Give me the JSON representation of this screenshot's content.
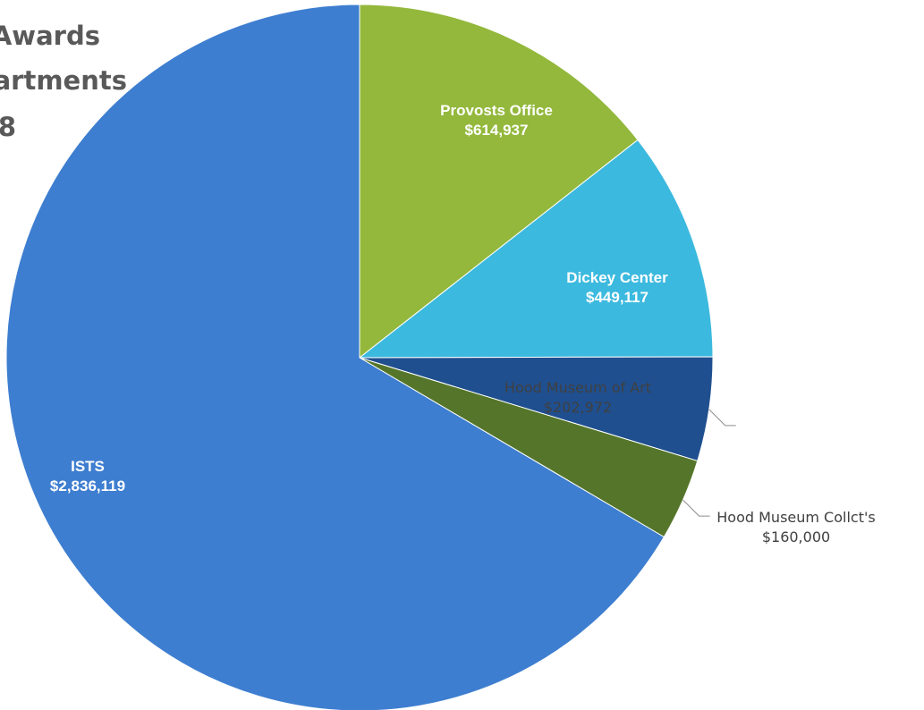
{
  "chart_data": {
    "type": "pie",
    "title_lines": [
      "Awards",
      "artments",
      "8"
    ],
    "categories": [
      "Provosts Office",
      "Dickey Center",
      "Hood Museum of Art",
      "Hood Museum Collct's",
      "ISTS"
    ],
    "values": [
      614937,
      449117,
      202972,
      160000,
      2836119
    ],
    "value_labels": [
      "$614,937",
      "$449,117",
      "$202,972",
      "$160,000",
      "$2,836,119"
    ],
    "colors": [
      "#93b83c",
      "#3cb9de",
      "#1f4f8f",
      "#55762a",
      "#3e7ed0"
    ]
  }
}
